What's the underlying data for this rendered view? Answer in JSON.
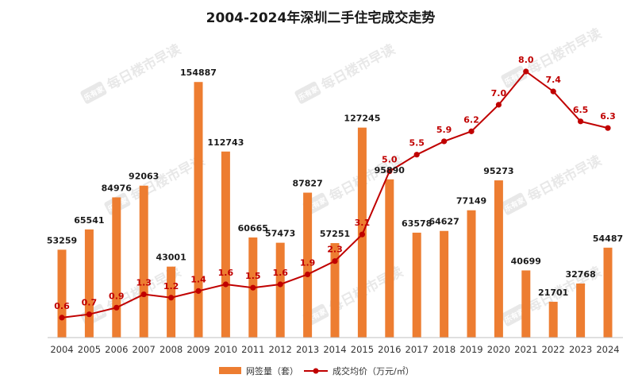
{
  "chart_data": {
    "type": "bar",
    "title": "2004-2024年深圳二手住宅成交走势",
    "categories": [
      "2004",
      "2005",
      "2006",
      "2007",
      "2008",
      "2009",
      "2010",
      "2011",
      "2012",
      "2013",
      "2014",
      "2015",
      "2016",
      "2017",
      "2018",
      "2019",
      "2020",
      "2021",
      "2022",
      "2023",
      "2024"
    ],
    "series": [
      {
        "name": "网签量（套）",
        "kind": "bar",
        "axis": "left",
        "color": "#ED7D31",
        "values": [
          53259,
          65541,
          84976,
          92063,
          43001,
          154887,
          112743,
          60665,
          57473,
          87827,
          57251,
          127245,
          95890,
          63578,
          64627,
          77149,
          95273,
          40699,
          21701,
          32768,
          54487
        ]
      },
      {
        "name": "成交均价（万元/㎡）",
        "kind": "line",
        "axis": "right",
        "color": "#C00000",
        "values": [
          0.6,
          0.7,
          0.9,
          1.3,
          1.2,
          1.4,
          1.6,
          1.5,
          1.6,
          1.9,
          2.3,
          3.1,
          5.0,
          5.5,
          5.9,
          6.2,
          7.0,
          8.0,
          7.4,
          6.5,
          6.3
        ]
      }
    ],
    "ylim_left": [
      0,
      160000
    ],
    "ylim_right": [
      0,
      8.5
    ],
    "grid": false,
    "legend_position": "bottom-center"
  },
  "watermark": {
    "text": "每日楼市早读",
    "badge": "乐有家"
  }
}
